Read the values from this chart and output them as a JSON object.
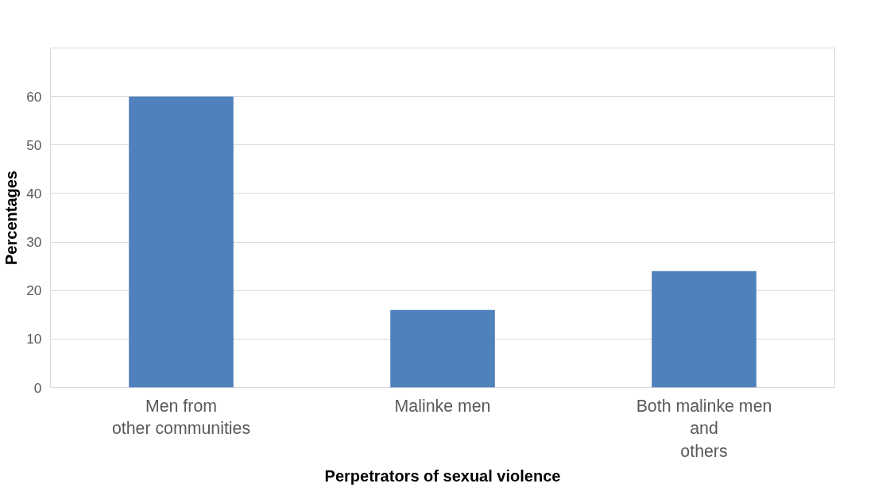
{
  "chart_data": {
    "type": "bar",
    "xlabel": "Perpetrators of sexual violence",
    "ylabel": "Percentages",
    "categories": [
      "Men from other communities",
      "Malinke men",
      "Both malinke men and others"
    ],
    "values": [
      60,
      16,
      24
    ],
    "color": "#4f81bd",
    "ylim": [
      0,
      70
    ],
    "yticks": [
      0,
      10,
      20,
      30,
      40,
      50,
      60,
      {
        "value": 70,
        "label": null
      }
    ],
    "grid": "y"
  }
}
